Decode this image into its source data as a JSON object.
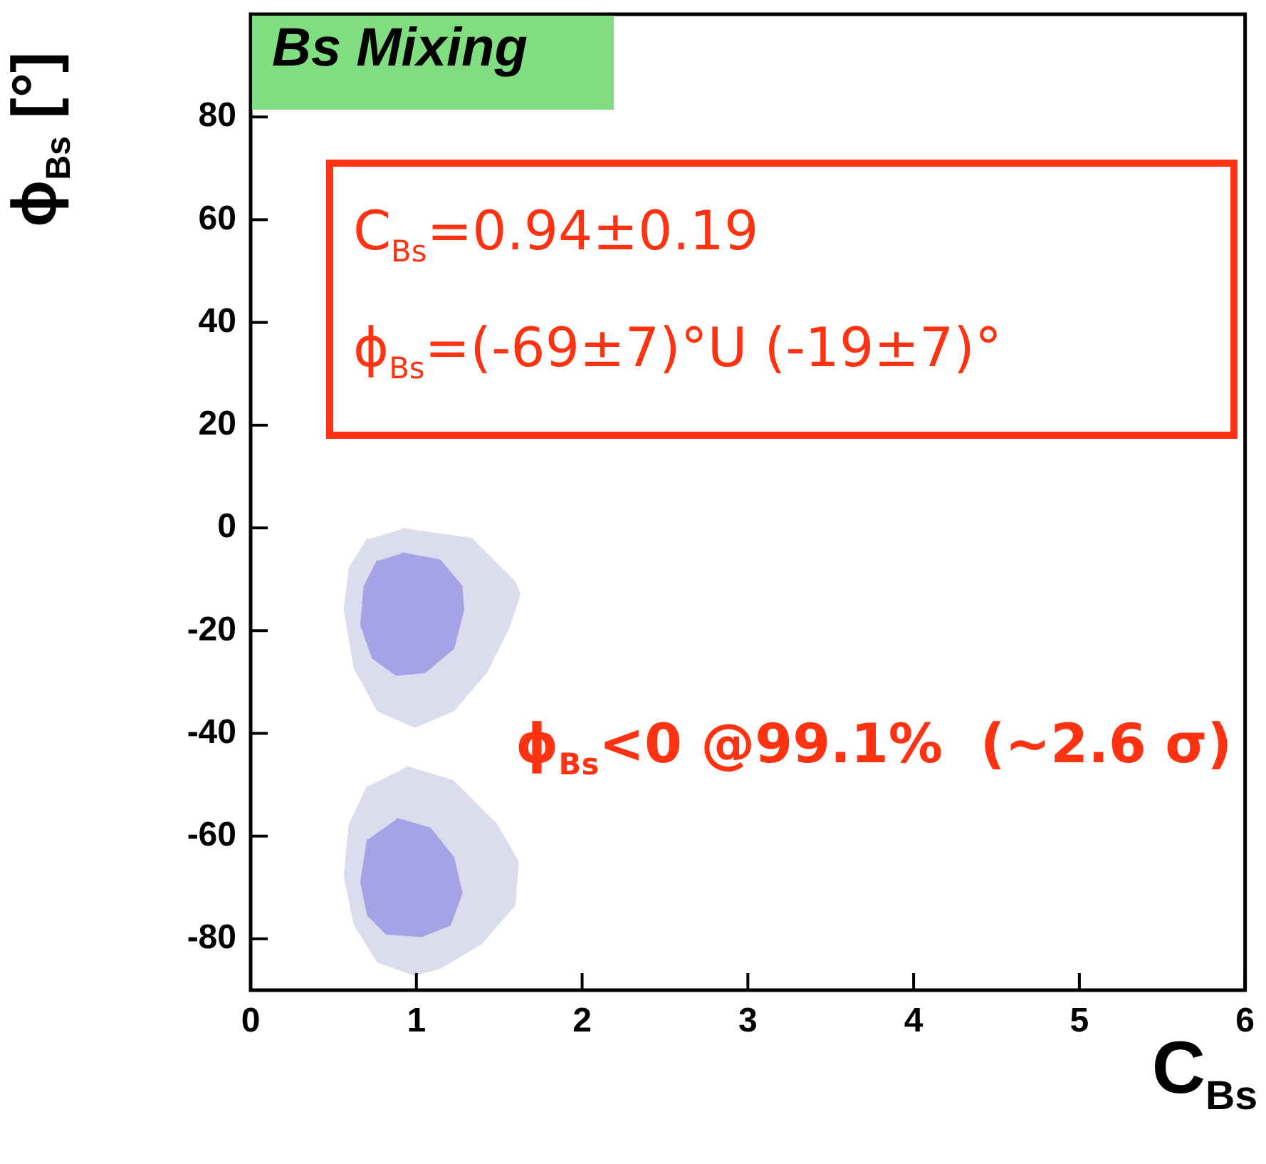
{
  "chart_data": {
    "type": "area",
    "title": "Bs Mixing",
    "xlabel": "C$_{Bs}$",
    "ylabel": "ϕ$_{Bs}$ [°]",
    "annotations": [
      "C$_{Bs}$=0.94±0.19",
      "ϕ$_{Bs}$=(-69±7)°U (-19±7)°",
      "ϕ$_{Bs}$<0 @99.1%  (~2.6 σ)"
    ],
    "xlim": [
      0,
      6
    ],
    "xticks": [
      0,
      1,
      2,
      3,
      4,
      5,
      6
    ],
    "ylim": [
      -90,
      100
    ],
    "yticks": [
      -80,
      -60,
      -40,
      -20,
      0,
      20,
      40,
      60,
      80
    ],
    "grid": false,
    "legend": false,
    "series": [
      {
        "color": "#dcdcef",
        "x": [
          0.91,
          1.33,
          1.59,
          1.62,
          1.56,
          1.42,
          1.22,
          0.99,
          0.77,
          0.63,
          0.57,
          0.6,
          0.71
        ],
        "values": [
          -0.3,
          -2.2,
          -10.6,
          -12.8,
          -18.9,
          -28,
          -35.5,
          -38.6,
          -35.5,
          -27.2,
          -16,
          -7.8,
          -2.2
        ]
      },
      {
        "color": "#a3a3e6",
        "x": [
          0.91,
          1.14,
          1.27,
          1.28,
          1.22,
          1.05,
          0.88,
          0.74,
          0.67,
          0.69,
          0.77
        ],
        "values": [
          -5,
          -6.4,
          -11.4,
          -16,
          -23.4,
          -28,
          -28.5,
          -25.3,
          -18.9,
          -11.4,
          -6.4
        ]
      },
      {
        "color": "#dcdcef",
        "x": [
          0.94,
          1.22,
          1.48,
          1.61,
          1.59,
          1.39,
          1.14,
          0.99,
          0.77,
          0.63,
          0.57,
          0.6,
          0.71
        ],
        "values": [
          -46.6,
          -49.4,
          -57.8,
          -65,
          -73.3,
          -80.8,
          -85.6,
          -86.9,
          -84.4,
          -77.2,
          -67.8,
          -57.8,
          -50.3
        ]
      },
      {
        "color": "#a3a3e6",
        "x": [
          0.88,
          1.08,
          1.22,
          1.27,
          1.2,
          1.03,
          0.82,
          0.71,
          0.67,
          0.71
        ],
        "values": [
          -56.7,
          -58.6,
          -64.2,
          -71.1,
          -77.2,
          -79.4,
          -78.9,
          -75.3,
          -68.9,
          -60.6
        ]
      }
    ]
  }
}
